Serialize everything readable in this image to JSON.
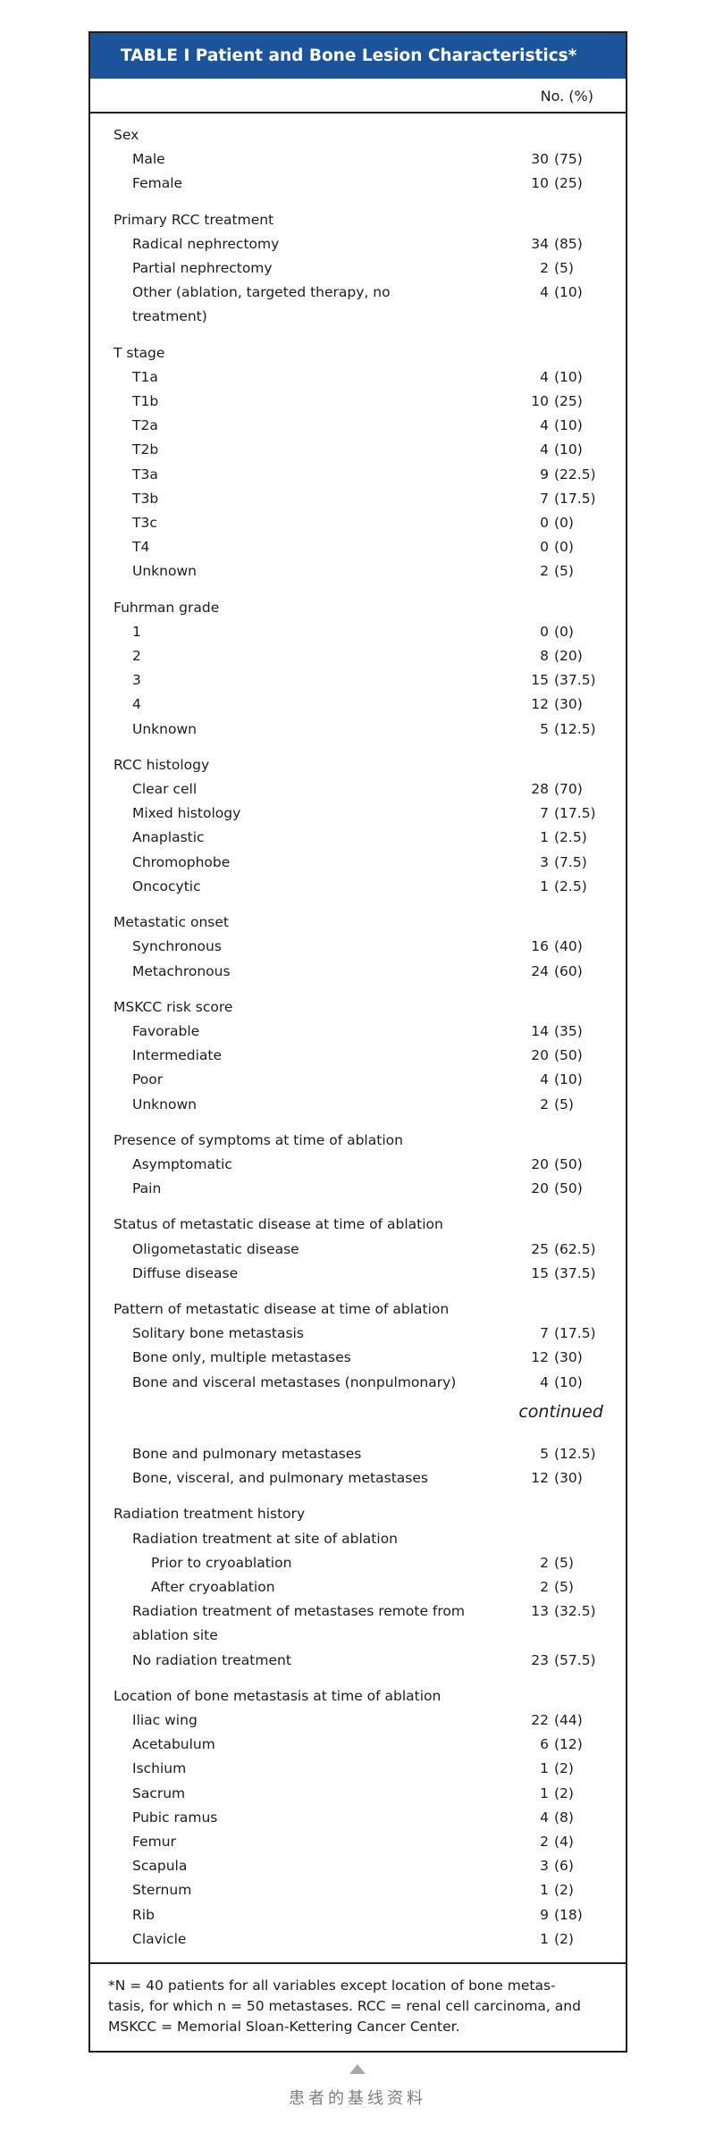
{
  "colors": {
    "header_bg": "#1B549A",
    "header_text": "#FFFFFF",
    "border": "#231F20",
    "body_text": "#1C1C1C",
    "caption_gray": "#7D7D7D",
    "triangle_gray": "#A9A9A9"
  },
  "table": {
    "title": "TABLE I Patient and Bone Lesion Characteristics*",
    "column_header": "No. (%)",
    "continued_label": "continued",
    "sections": [
      {
        "header": "Sex",
        "rows": [
          {
            "label": "Male",
            "num": "30",
            "pct": "(75)"
          },
          {
            "label": "Female",
            "num": "10",
            "pct": "(25)"
          }
        ]
      },
      {
        "header": "Primary RCC treatment",
        "rows": [
          {
            "label": "Radical nephrectomy",
            "num": "34",
            "pct": "(85)"
          },
          {
            "label": "Partial nephrectomy",
            "num": "2",
            "pct": "(5)"
          },
          {
            "label": "Other (ablation, targeted therapy, no treatment)",
            "num": "4",
            "pct": "(10)"
          }
        ]
      },
      {
        "header": "T stage",
        "rows": [
          {
            "label": "T1a",
            "num": "4",
            "pct": "(10)"
          },
          {
            "label": "T1b",
            "num": "10",
            "pct": "(25)"
          },
          {
            "label": "T2a",
            "num": "4",
            "pct": "(10)"
          },
          {
            "label": "T2b",
            "num": "4",
            "pct": "(10)"
          },
          {
            "label": "T3a",
            "num": "9",
            "pct": "(22.5)"
          },
          {
            "label": "T3b",
            "num": "7",
            "pct": "(17.5)"
          },
          {
            "label": "T3c",
            "num": "0",
            "pct": "(0)"
          },
          {
            "label": "T4",
            "num": "0",
            "pct": "(0)"
          },
          {
            "label": "Unknown",
            "num": "2",
            "pct": "(5)"
          }
        ]
      },
      {
        "header": "Fuhrman grade",
        "rows": [
          {
            "label": "1",
            "num": "0",
            "pct": "(0)"
          },
          {
            "label": "2",
            "num": "8",
            "pct": "(20)"
          },
          {
            "label": "3",
            "num": "15",
            "pct": "(37.5)"
          },
          {
            "label": "4",
            "num": "12",
            "pct": "(30)"
          },
          {
            "label": "Unknown",
            "num": "5",
            "pct": "(12.5)"
          }
        ]
      },
      {
        "header": "RCC histology",
        "rows": [
          {
            "label": "Clear cell",
            "num": "28",
            "pct": "(70)"
          },
          {
            "label": "Mixed histology",
            "num": "7",
            "pct": "(17.5)"
          },
          {
            "label": "Anaplastic",
            "num": "1",
            "pct": "(2.5)"
          },
          {
            "label": "Chromophobe",
            "num": "3",
            "pct": "(7.5)"
          },
          {
            "label": "Oncocytic",
            "num": "1",
            "pct": "(2.5)"
          }
        ]
      },
      {
        "header": "Metastatic onset",
        "rows": [
          {
            "label": "Synchronous",
            "num": "16",
            "pct": "(40)"
          },
          {
            "label": "Metachronous",
            "num": "24",
            "pct": "(60)"
          }
        ]
      },
      {
        "header": "MSKCC risk score",
        "rows": [
          {
            "label": "Favorable",
            "num": "14",
            "pct": "(35)"
          },
          {
            "label": "Intermediate",
            "num": "20",
            "pct": "(50)"
          },
          {
            "label": "Poor",
            "num": "4",
            "pct": "(10)"
          },
          {
            "label": "Unknown",
            "num": "2",
            "pct": "(5)"
          }
        ]
      },
      {
        "header": "Presence of symptoms at time of ablation",
        "rows": [
          {
            "label": "Asymptomatic",
            "num": "20",
            "pct": "(50)"
          },
          {
            "label": "Pain",
            "num": "20",
            "pct": "(50)"
          }
        ]
      },
      {
        "header": "Status of metastatic disease at time of ablation",
        "rows": [
          {
            "label": "Oligometastatic disease",
            "num": "25",
            "pct": "(62.5)"
          },
          {
            "label": "Diffuse disease",
            "num": "15",
            "pct": "(37.5)"
          }
        ]
      },
      {
        "header": "Pattern of metastatic disease at time of ablation",
        "continued_after": true,
        "rows": [
          {
            "label": "Solitary bone metastasis",
            "num": "7",
            "pct": "(17.5)"
          },
          {
            "label": "Bone only, multiple metastases",
            "num": "12",
            "pct": "(30)"
          },
          {
            "label": "Bone and visceral metastases (nonpulmonary)",
            "num": "4",
            "pct": "(10)"
          }
        ]
      },
      {
        "header": null,
        "rows": [
          {
            "label": "Bone and pulmonary metastases",
            "num": "5",
            "pct": "(12.5)"
          },
          {
            "label": "Bone, visceral, and pulmonary metastases",
            "num": "12",
            "pct": "(30)"
          }
        ]
      },
      {
        "header": "Radiation treatment history",
        "rows": [
          {
            "label": "Radiation treatment at site of ablation",
            "num": "",
            "pct": ""
          },
          {
            "label": "Prior to cryoablation",
            "num": "2",
            "pct": "(5)",
            "level": 3
          },
          {
            "label": "After cryoablation",
            "num": "2",
            "pct": "(5)",
            "level": 3
          },
          {
            "label": "Radiation treatment of metastases remote from ablation site",
            "num": "13",
            "pct": "(32.5)"
          },
          {
            "label": "No radiation treatment",
            "num": "23",
            "pct": "(57.5)"
          }
        ]
      },
      {
        "header": "Location of bone metastasis at time of ablation",
        "rows": [
          {
            "label": "Iliac wing",
            "num": "22",
            "pct": "(44)"
          },
          {
            "label": "Acetabulum",
            "num": "6",
            "pct": "(12)"
          },
          {
            "label": "Ischium",
            "num": "1",
            "pct": "(2)"
          },
          {
            "label": "Sacrum",
            "num": "1",
            "pct": "(2)"
          },
          {
            "label": "Pubic ramus",
            "num": "4",
            "pct": "(8)"
          },
          {
            "label": "Femur",
            "num": "2",
            "pct": "(4)"
          },
          {
            "label": "Scapula",
            "num": "3",
            "pct": "(6)"
          },
          {
            "label": "Sternum",
            "num": "1",
            "pct": "(2)"
          },
          {
            "label": "Rib",
            "num": "9",
            "pct": "(18)"
          },
          {
            "label": "Clavicle",
            "num": "1",
            "pct": "(2)"
          }
        ]
      }
    ],
    "footnote_lines": [
      "*N = 40 patients for all variables except location of bone metas-",
      "tasis, for which n = 50 metastases. RCC = renal cell carcinoma, and",
      "MSKCC = Memorial Sloan-Kettering Cancer Center."
    ]
  },
  "caption": {
    "text": "患者的基线资料"
  }
}
